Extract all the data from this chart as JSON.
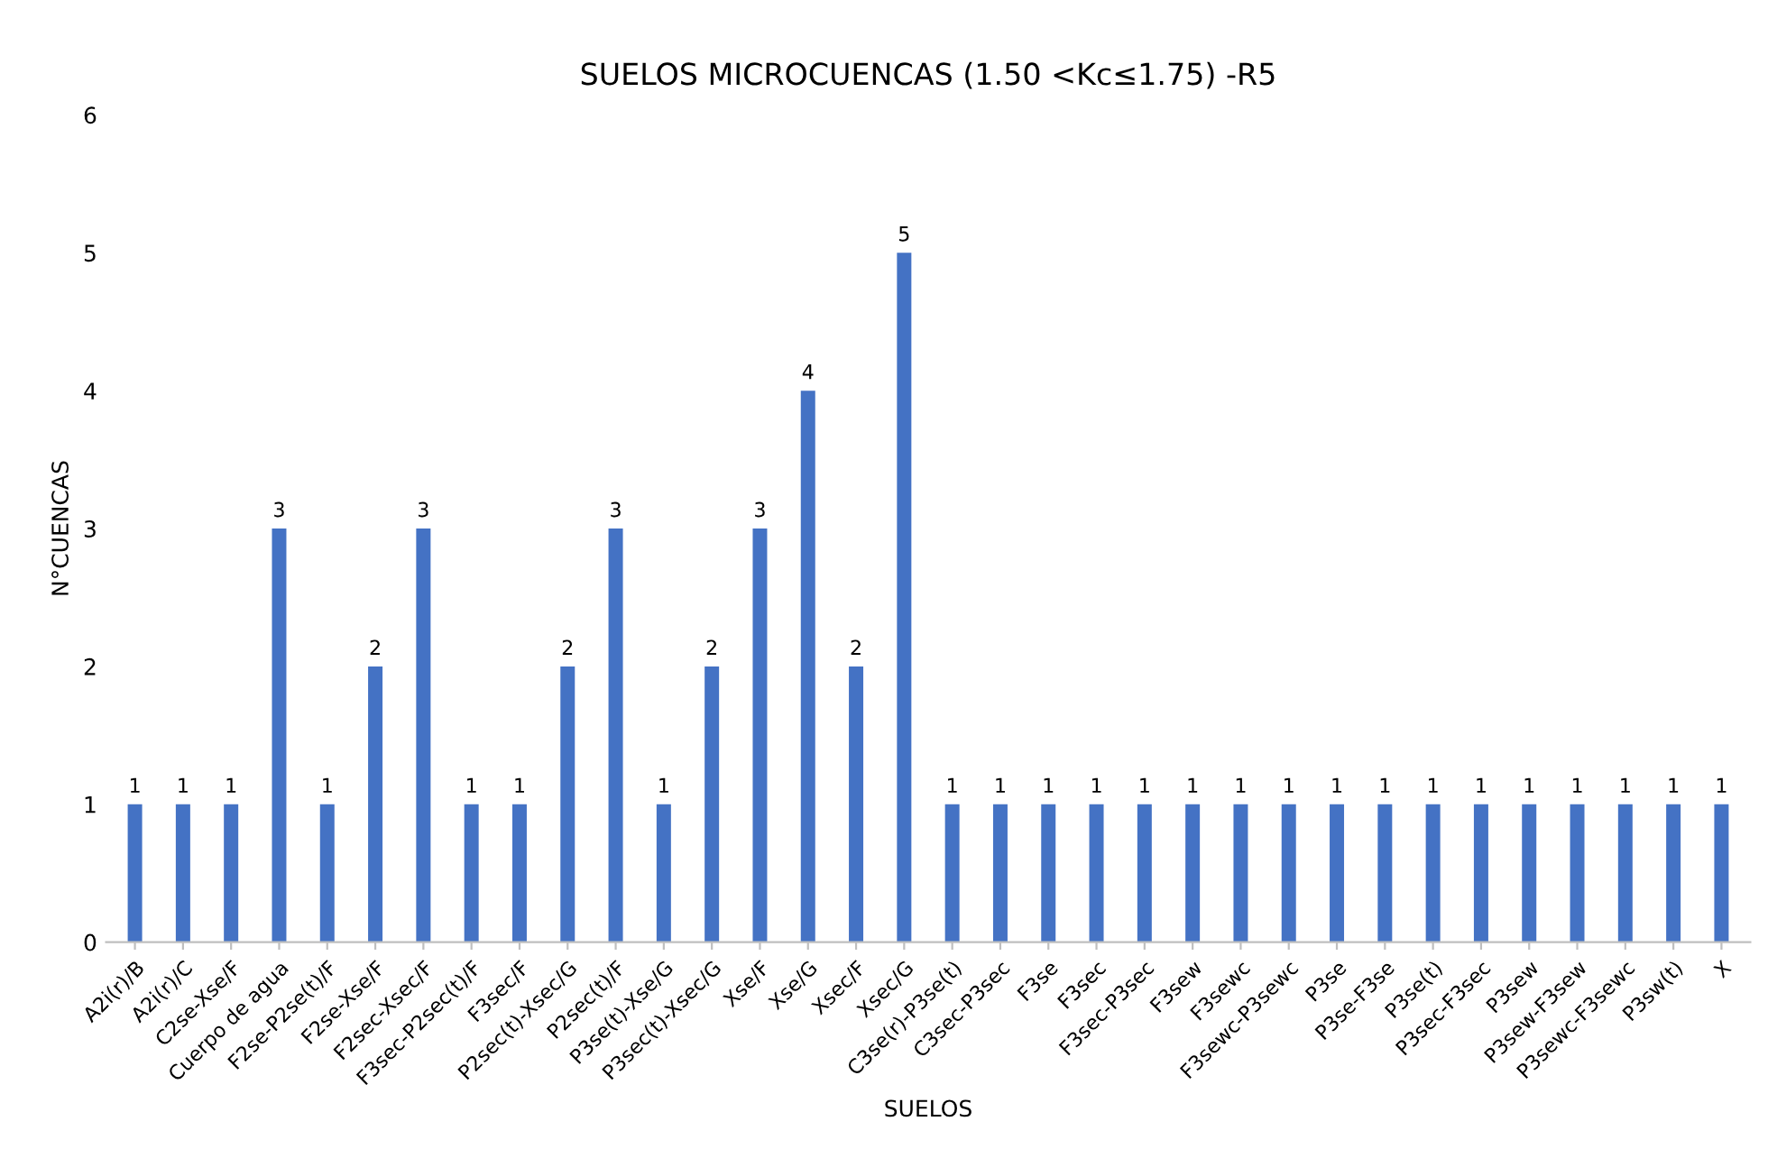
{
  "chart_data": {
    "type": "bar",
    "title": "SUELOS MICROCUENCAS (1.50 <Kc≤1.75) -R5",
    "xlabel": "SUELOS",
    "ylabel": "N°CUENCAS",
    "categories": [
      "A2i(r)/B",
      "A2i(r)/C",
      "C2se-Xse/F",
      "Cuerpo de agua",
      "F2se-P2se(t)/F",
      "F2se-Xse/F",
      "F2sec-Xsec/F",
      "F3sec-P2sec(t)/F",
      "F3sec/F",
      "P2sec(t)-Xsec/G",
      "P2sec(t)/F",
      "P3se(t)-Xse/G",
      "P3sec(t)-Xsec/G",
      "Xse/F",
      "Xse/G",
      "Xsec/F",
      "Xsec/G",
      "C3se(r)-P3se(t)",
      "C3sec-P3sec",
      "F3se",
      "F3sec",
      "F3sec-P3sec",
      "F3sew",
      "F3sewc",
      "F3sewc-P3sewc",
      "P3se",
      "P3se-F3se",
      "P3se(t)",
      "P3sec-F3sec",
      "P3sew",
      "P3sew-F3sew",
      "P3sewc-F3sewc",
      "P3sw(t)",
      "X"
    ],
    "values": [
      1,
      1,
      1,
      3,
      1,
      2,
      3,
      1,
      1,
      2,
      3,
      1,
      2,
      3,
      4,
      2,
      5,
      1,
      1,
      1,
      1,
      1,
      1,
      1,
      1,
      1,
      1,
      1,
      1,
      1,
      1,
      1,
      1,
      1
    ],
    "color": "#4472c4",
    "ylim": [
      0,
      6
    ],
    "yticks": [
      0,
      1,
      2,
      3,
      4,
      5,
      6
    ],
    "data_labels": true,
    "grid": false
  }
}
